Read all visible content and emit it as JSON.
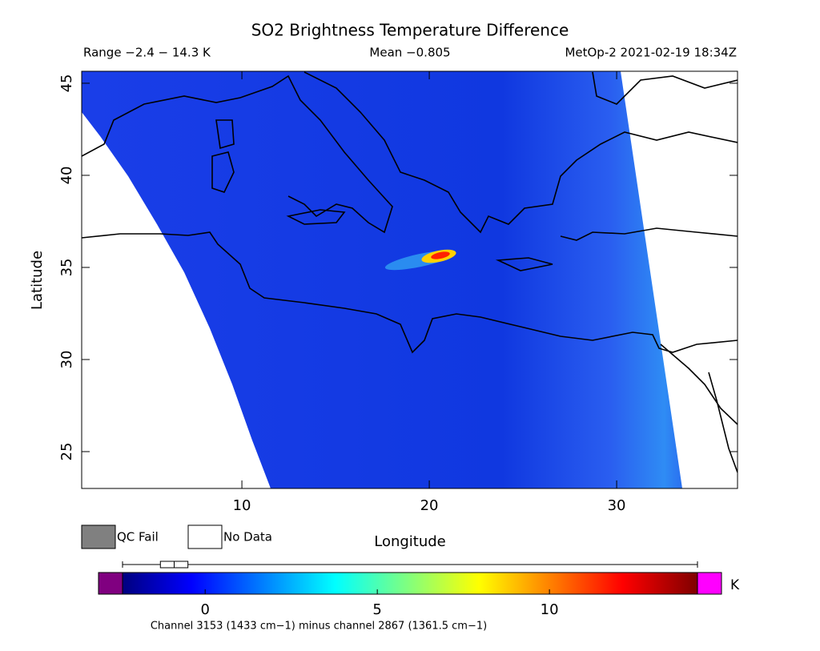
{
  "chart_data": {
    "type": "map",
    "title": "SO2 Brightness Temperature Difference",
    "range_label": "Range −2.4 − 14.3 K",
    "mean_label": "Mean −0.805",
    "source_label": "MetOp-2 2021-02-19 18:34Z",
    "xlabel": "Longitude",
    "ylabel": "Latitude",
    "xlim": [
      1.45,
      36.45
    ],
    "ylim": [
      23,
      45.65
    ],
    "xticks": [
      10,
      20,
      30
    ],
    "yticks": [
      25,
      30,
      35,
      40,
      45
    ],
    "legend": [
      {
        "name": "QC Fail",
        "color": "#808080"
      },
      {
        "name": "No Data",
        "color": "#ffffff"
      }
    ],
    "colorbar": {
      "unit": "K",
      "lim": [
        -2.4,
        14.3
      ],
      "ticks": [
        0,
        5,
        10
      ],
      "under_color": "#800080",
      "over_color": "#ff00ff",
      "caption": "Channel 3153 (1433 cm−1) minus channel 2867 (1361.5 cm−1)"
    },
    "boxplot": {
      "low": -2.4,
      "q1": -1.3,
      "median": -0.9,
      "q3": -0.5,
      "high": 14.3
    }
  }
}
